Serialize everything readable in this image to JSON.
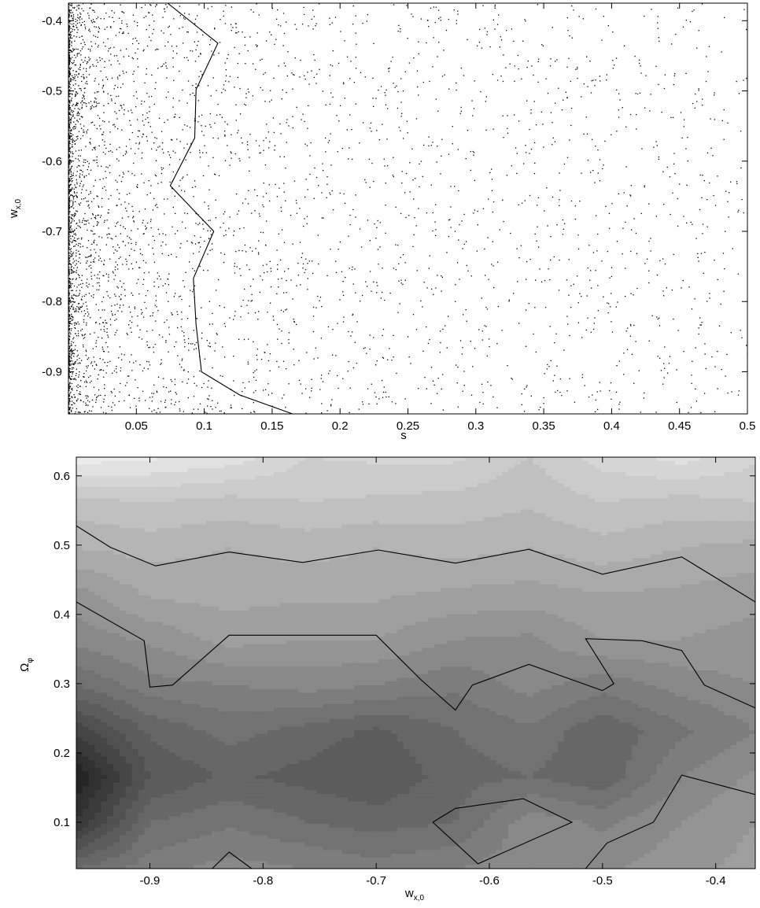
{
  "chart_data": [
    {
      "type": "scatter",
      "title": "",
      "xlabel": "s",
      "ylabel_main": "w",
      "ylabel_sub": "x,0",
      "xlim": [
        0.0,
        0.5
      ],
      "ylim": [
        -0.96,
        -0.375
      ],
      "xticks": [
        0.05,
        0.1,
        0.15,
        0.2,
        0.25,
        0.3,
        0.35,
        0.4,
        0.45,
        0.5
      ],
      "xtick_labels": [
        "0.05",
        "0.1",
        "0.15",
        "0.2",
        "0.25",
        "0.3",
        "0.35",
        "0.4",
        "0.45",
        "0.5"
      ],
      "yticks": [
        -0.4,
        -0.5,
        -0.6,
        -0.7,
        -0.8,
        -0.9
      ],
      "ytick_labels": [
        "-0.4",
        "-0.5",
        "-0.6",
        "-0.7",
        "-0.8",
        "-0.9"
      ],
      "grid": false,
      "points_note": "dense random sample of points, density decreasing strongly with s",
      "boundary_line": {
        "x": [
          0.073,
          0.11,
          0.094,
          0.093,
          0.075,
          0.107,
          0.092,
          0.094,
          0.098,
          0.126,
          0.165
        ],
        "y": [
          -0.375,
          -0.432,
          -0.498,
          -0.567,
          -0.635,
          -0.7,
          -0.767,
          -0.833,
          -0.9,
          -0.933,
          -0.96
        ]
      }
    },
    {
      "type": "contour",
      "title": "",
      "xlabel_main": "w",
      "xlabel_sub": "x,0",
      "ylabel_main": "Ω",
      "ylabel_sub": "φ",
      "xlim": [
        -0.965,
        -0.365
      ],
      "ylim": [
        0.033,
        0.627
      ],
      "xticks": [
        -0.9,
        -0.8,
        -0.7,
        -0.6,
        -0.5,
        -0.4
      ],
      "xtick_labels": [
        "-0.9",
        "-0.8",
        "-0.7",
        "-0.6",
        "-0.5",
        "-0.4"
      ],
      "yticks": [
        0.1,
        0.2,
        0.3,
        0.4,
        0.5,
        0.6
      ],
      "ytick_labels": [
        "0.1",
        "0.2",
        "0.3",
        "0.4",
        "0.5",
        "0.6"
      ],
      "grid": false,
      "colormap": "grayscale, dark (low) to light (high)",
      "x": [
        -0.965,
        -0.9,
        -0.83,
        -0.76,
        -0.7,
        -0.63,
        -0.565,
        -0.5,
        -0.43,
        -0.365
      ],
      "y": [
        0.033,
        0.1,
        0.166,
        0.232,
        0.298,
        0.364,
        0.43,
        0.496,
        0.562,
        0.627
      ],
      "z": [
        [
          0.4,
          0.48,
          0.52,
          0.5,
          0.47,
          0.5,
          0.53,
          0.54,
          0.58,
          0.62
        ],
        [
          0.15,
          0.4,
          0.44,
          0.4,
          0.38,
          0.4,
          0.53,
          0.49,
          0.55,
          0.6
        ],
        [
          0.05,
          0.3,
          0.36,
          0.33,
          0.3,
          0.38,
          0.4,
          0.36,
          0.5,
          0.56
        ],
        [
          0.22,
          0.36,
          0.42,
          0.38,
          0.34,
          0.4,
          0.44,
          0.36,
          0.44,
          0.5
        ],
        [
          0.4,
          0.48,
          0.5,
          0.52,
          0.5,
          0.46,
          0.52,
          0.47,
          0.52,
          0.55
        ],
        [
          0.52,
          0.56,
          0.62,
          0.6,
          0.6,
          0.55,
          0.54,
          0.6,
          0.6,
          0.58
        ],
        [
          0.58,
          0.66,
          0.67,
          0.66,
          0.66,
          0.64,
          0.63,
          0.65,
          0.64,
          0.62
        ],
        [
          0.7,
          0.72,
          0.7,
          0.72,
          0.7,
          0.72,
          0.7,
          0.73,
          0.7,
          0.68
        ],
        [
          0.78,
          0.8,
          0.78,
          0.8,
          0.79,
          0.78,
          0.76,
          0.8,
          0.78,
          0.8
        ],
        [
          0.98,
          0.96,
          0.93,
          0.85,
          0.86,
          0.86,
          0.8,
          0.87,
          0.92,
          0.86
        ]
      ],
      "levels": [
        0.05,
        0.1,
        0.15,
        0.2,
        0.25,
        0.3,
        0.35,
        0.4,
        0.45,
        0.5,
        0.55,
        0.6,
        0.65,
        0.7,
        0.75,
        0.8,
        0.85,
        0.9,
        0.95
      ],
      "contour_lines": [
        {
          "x": [
            -0.965,
            -0.935,
            -0.895,
            -0.83,
            -0.765,
            -0.698,
            -0.63,
            -0.565,
            -0.5,
            -0.43,
            -0.365
          ],
          "y": [
            0.528,
            0.497,
            0.47,
            0.49,
            0.475,
            0.493,
            0.474,
            0.494,
            0.458,
            0.483,
            0.418
          ]
        },
        {
          "x": [
            -0.965,
            -0.905,
            -0.9,
            -0.88,
            -0.83,
            -0.7,
            -0.66,
            -0.63,
            -0.615,
            -0.565,
            -0.5,
            -0.49,
            -0.515,
            -0.465,
            -0.43,
            -0.41,
            -0.365
          ],
          "y": [
            0.418,
            0.362,
            0.295,
            0.298,
            0.37,
            0.37,
            0.305,
            0.262,
            0.298,
            0.328,
            0.29,
            0.3,
            0.365,
            0.362,
            0.348,
            0.298,
            0.265
          ]
        },
        {
          "x": [
            -0.65,
            -0.63,
            -0.57,
            -0.527,
            -0.61,
            -0.65
          ],
          "y": [
            0.1,
            0.12,
            0.134,
            0.1,
            0.04,
            0.1
          ]
        },
        {
          "x": [
            -0.515,
            -0.496,
            -0.455,
            -0.43,
            -0.365
          ],
          "y": [
            0.033,
            0.07,
            0.1,
            0.168,
            0.14
          ]
        },
        {
          "x": [
            -0.845,
            -0.83,
            -0.81
          ],
          "y": [
            0.033,
            0.057,
            0.033
          ]
        }
      ]
    }
  ]
}
